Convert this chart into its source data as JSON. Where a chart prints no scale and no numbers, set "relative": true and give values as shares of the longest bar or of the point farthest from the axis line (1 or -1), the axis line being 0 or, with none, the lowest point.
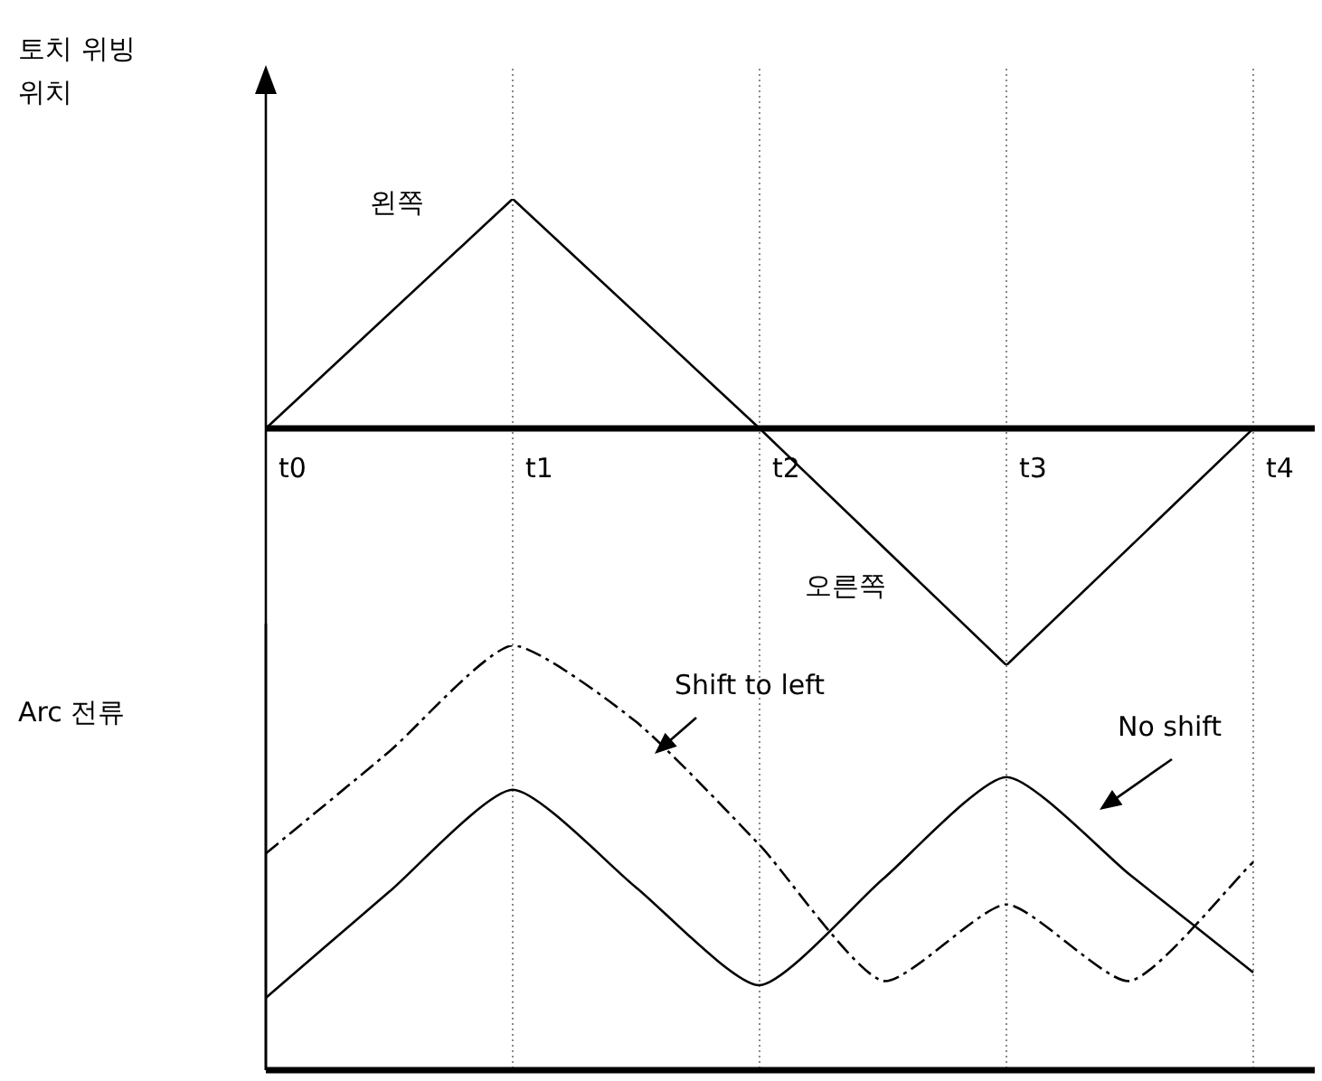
{
  "chart_data": [
    {
      "type": "line",
      "ylabel": "토치 위빙 위치",
      "categories": [
        "t0",
        "t1",
        "t2",
        "t3",
        "t4"
      ],
      "relative": true,
      "grid": "x",
      "marker": "none",
      "line_style": "solid",
      "annotations": [
        "왼쪽",
        "오른쪽"
      ],
      "series": [
        {
          "color": "#000000",
          "values": [
            0,
            0.97,
            0,
            -1,
            0
          ]
        }
      ]
    },
    {
      "type": "line",
      "ylabel": "Arc 전류",
      "relative": true,
      "marker": "none",
      "categories": [
        null,
        null,
        null,
        null,
        null,
        null,
        null,
        null,
        null
      ],
      "series": [
        {
          "name": "Shift to left",
          "color": "#000000",
          "line_style": "dashed",
          "values": [
            0.51,
            0.75,
            1,
            0.82,
            0.53,
            0.21,
            0.39,
            0.21,
            0.49
          ]
        },
        {
          "name": "No shift",
          "color": "#000000",
          "line_style": "solid",
          "values": [
            0.17,
            0.42,
            0.66,
            0.43,
            0.2,
            0.45,
            0.69,
            0.46,
            0.23
          ]
        }
      ]
    }
  ]
}
